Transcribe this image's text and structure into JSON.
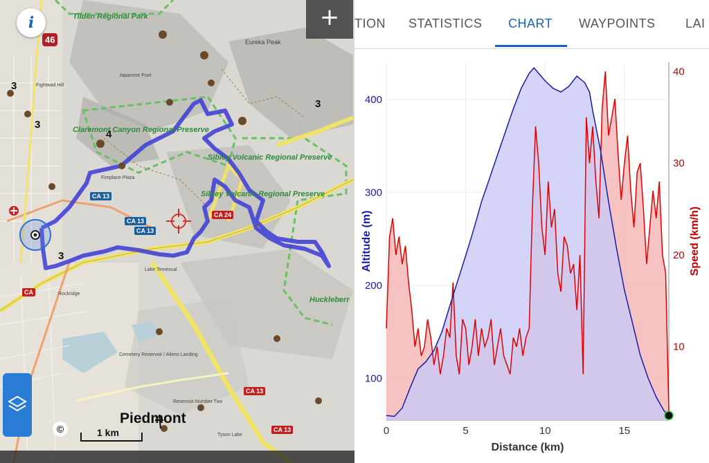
{
  "map": {
    "info_button": "i",
    "notification_count": "46",
    "zoom_in": "+",
    "copyright": "©",
    "scale": "1 km",
    "labels": {
      "tilden": "Tilden Regional Park",
      "claremont": "Claremont Canyon Regional Preserve",
      "sibley1": "Sibley Volcanic Regional Preserve",
      "sibley2": "Sibley Volcanic Regional Preserve",
      "huckleberry": "Huckleberr",
      "piedmont": "Piedmont",
      "eureka": "Eureka Peak",
      "fireplace": "Fireplace Plaza",
      "rockridge": "Rockridge",
      "japanese_pool": "Japanese Pool",
      "lake_temescal": "Lake Temescal",
      "cemetery": "Cemetery Reservoir / Aliens Landing",
      "reservoir2": "Reservoir Number Two",
      "tyson": "Tyson Lake",
      "fightwad": "Fightwad Hill"
    },
    "numbers": [
      "3",
      "3",
      "4",
      "3",
      "3"
    ],
    "road_badges": [
      "CA 13",
      "CA 13",
      "CA 13",
      "CA 24",
      "CA",
      "CA 13",
      "CA 13"
    ]
  },
  "tabs": [
    {
      "label": "TION",
      "active": false
    },
    {
      "label": "STATISTICS",
      "active": false
    },
    {
      "label": "CHART",
      "active": true
    },
    {
      "label": "WAYPOINTS",
      "active": false
    },
    {
      "label": "LAI",
      "active": false
    }
  ],
  "chart_data": {
    "type": "area",
    "xlabel": "Distance (km)",
    "ylabel_left": "Altitude (m)",
    "ylabel_right": "Speed (km/h)",
    "x_ticks": [
      "0",
      "5",
      "10",
      "15"
    ],
    "y_left_ticks": [
      "100",
      "200",
      "300",
      "400"
    ],
    "y_right_ticks": [
      "10",
      "20",
      "30",
      "40"
    ],
    "xlim": [
      0,
      17.8
    ],
    "ylim_left": [
      55,
      440
    ],
    "ylim_right": [
      2,
      41
    ],
    "colors": {
      "altitude": "#1a1aa8",
      "altitude_fill": "#c9c9f6",
      "speed": "#e00000",
      "speed_fill": "#f6b7b7"
    },
    "series": [
      {
        "name": "Altitude (m)",
        "axis": "left",
        "x": [
          0,
          0.5,
          1.0,
          1.5,
          2.0,
          2.5,
          3.0,
          3.5,
          4.0,
          4.5,
          5.0,
          5.5,
          6.0,
          6.5,
          7.0,
          7.5,
          8.0,
          8.5,
          9.0,
          9.3,
          9.6,
          10.0,
          10.5,
          11.0,
          11.5,
          12.0,
          12.5,
          12.8,
          13.0,
          13.5,
          14.0,
          14.5,
          15.0,
          15.5,
          16.0,
          16.5,
          17.0,
          17.5,
          17.8
        ],
        "y": [
          60,
          59,
          68,
          90,
          110,
          118,
          130,
          150,
          178,
          205,
          232,
          260,
          290,
          315,
          340,
          365,
          390,
          412,
          428,
          434,
          428,
          420,
          412,
          408,
          414,
          425,
          418,
          408,
          388,
          345,
          290,
          240,
          195,
          160,
          125,
          100,
          80,
          65,
          60
        ]
      },
      {
        "name": "Speed (km/h)",
        "axis": "right",
        "x": [
          0,
          0.2,
          0.4,
          0.6,
          0.8,
          1.0,
          1.2,
          1.4,
          1.6,
          1.8,
          2.0,
          2.2,
          2.4,
          2.6,
          2.8,
          3.0,
          3.2,
          3.4,
          3.6,
          3.8,
          4.0,
          4.2,
          4.4,
          4.6,
          4.8,
          5.0,
          5.2,
          5.4,
          5.6,
          5.8,
          6.0,
          6.2,
          6.4,
          6.6,
          6.8,
          7.0,
          7.2,
          7.4,
          7.6,
          7.8,
          8.0,
          8.2,
          8.4,
          8.6,
          8.8,
          9.0,
          9.2,
          9.4,
          9.6,
          9.8,
          10.0,
          10.2,
          10.4,
          10.6,
          10.8,
          11.0,
          11.2,
          11.4,
          11.6,
          11.8,
          12.0,
          12.2,
          12.4,
          12.6,
          12.8,
          13.0,
          13.2,
          13.4,
          13.6,
          13.8,
          14.0,
          14.2,
          14.4,
          14.6,
          14.8,
          15.0,
          15.2,
          15.4,
          15.6,
          15.8,
          16.0,
          16.2,
          16.4,
          16.6,
          16.8,
          17.0,
          17.2,
          17.4,
          17.6,
          17.8
        ],
        "y": [
          12,
          22,
          24,
          20,
          22,
          19,
          21,
          17,
          14,
          10,
          12,
          9,
          10,
          13,
          11,
          8,
          10,
          7,
          9,
          12,
          11,
          17,
          9,
          7,
          13,
          12,
          8,
          10,
          13,
          9,
          12,
          10,
          11,
          13,
          8,
          10,
          12,
          9,
          8,
          7,
          11,
          10,
          12,
          9,
          11,
          12,
          25,
          34,
          30,
          23,
          20,
          28,
          23,
          25,
          18,
          16,
          22,
          21,
          18,
          19,
          14,
          20,
          7,
          35,
          30,
          34,
          28,
          24,
          36,
          40,
          33,
          35,
          37,
          31,
          26,
          30,
          33,
          27,
          23,
          29,
          30,
          25,
          19,
          23,
          27,
          24,
          28,
          20,
          18,
          3
        ]
      }
    ]
  }
}
